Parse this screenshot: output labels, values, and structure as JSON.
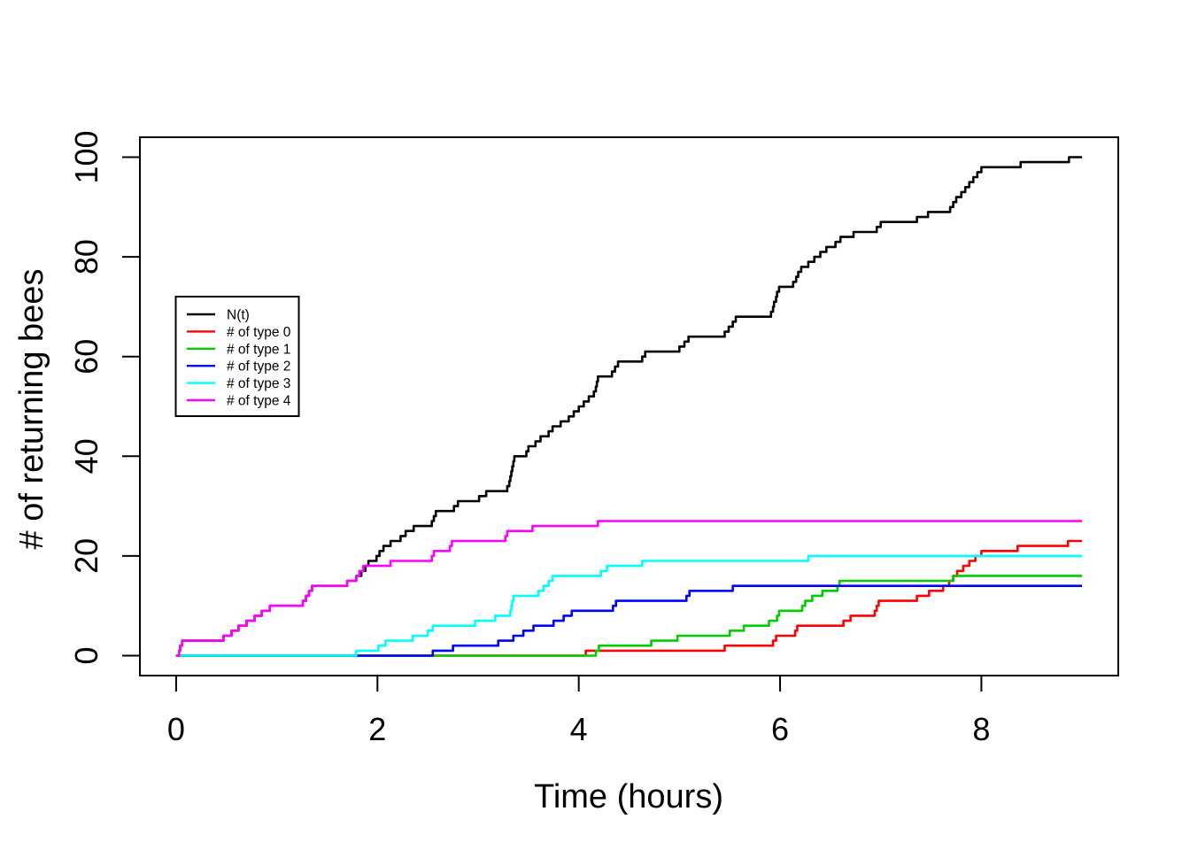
{
  "chart_data": {
    "type": "line",
    "line_style": "step-after",
    "title": "",
    "xlabel": "Time (hours)",
    "ylabel": "# of returning bees",
    "xlim": [
      0,
      9
    ],
    "ylim": [
      0,
      100
    ],
    "x_ticks": [
      0,
      2,
      4,
      6,
      8
    ],
    "y_ticks": [
      0,
      20,
      40,
      60,
      80,
      100
    ],
    "axis_expansion": 0.04,
    "t_end": 9,
    "grid": false,
    "legend_position": "upper-left-inside",
    "series": [
      {
        "id": "nt",
        "name": "N(t)",
        "color": "#000000",
        "points": [
          [
            0,
            0
          ],
          [
            0.03,
            1
          ],
          [
            0.04,
            2
          ],
          [
            0.06,
            3
          ],
          [
            0.47,
            4
          ],
          [
            0.55,
            5
          ],
          [
            0.62,
            6
          ],
          [
            0.7,
            7
          ],
          [
            0.78,
            8
          ],
          [
            0.85,
            9
          ],
          [
            0.93,
            10
          ],
          [
            1.26,
            11
          ],
          [
            1.29,
            12
          ],
          [
            1.32,
            13
          ],
          [
            1.35,
            14
          ],
          [
            1.7,
            15
          ],
          [
            1.79,
            16
          ],
          [
            1.84,
            17
          ],
          [
            1.88,
            18
          ],
          [
            1.91,
            19
          ],
          [
            1.99,
            20
          ],
          [
            2.02,
            21
          ],
          [
            2.06,
            22
          ],
          [
            2.13,
            23
          ],
          [
            2.23,
            24
          ],
          [
            2.28,
            25
          ],
          [
            2.36,
            26
          ],
          [
            2.54,
            27
          ],
          [
            2.56,
            28
          ],
          [
            2.58,
            29
          ],
          [
            2.76,
            30
          ],
          [
            2.8,
            31
          ],
          [
            3.01,
            32
          ],
          [
            3.08,
            33
          ],
          [
            3.29,
            34
          ],
          [
            3.31,
            35
          ],
          [
            3.32,
            36
          ],
          [
            3.33,
            37
          ],
          [
            3.34,
            38
          ],
          [
            3.35,
            39
          ],
          [
            3.36,
            40
          ],
          [
            3.48,
            41
          ],
          [
            3.5,
            42
          ],
          [
            3.57,
            43
          ],
          [
            3.62,
            44
          ],
          [
            3.7,
            45
          ],
          [
            3.74,
            46
          ],
          [
            3.82,
            47
          ],
          [
            3.9,
            48
          ],
          [
            3.95,
            49
          ],
          [
            4.0,
            50
          ],
          [
            4.05,
            51
          ],
          [
            4.1,
            52
          ],
          [
            4.15,
            53
          ],
          [
            4.17,
            54
          ],
          [
            4.18,
            55
          ],
          [
            4.19,
            56
          ],
          [
            4.33,
            57
          ],
          [
            4.36,
            58
          ],
          [
            4.39,
            59
          ],
          [
            4.63,
            60
          ],
          [
            4.66,
            61
          ],
          [
            5.0,
            62
          ],
          [
            5.05,
            63
          ],
          [
            5.09,
            64
          ],
          [
            5.45,
            65
          ],
          [
            5.49,
            66
          ],
          [
            5.53,
            67
          ],
          [
            5.56,
            68
          ],
          [
            5.91,
            69
          ],
          [
            5.93,
            70
          ],
          [
            5.94,
            71
          ],
          [
            5.96,
            72
          ],
          [
            5.97,
            73
          ],
          [
            5.99,
            74
          ],
          [
            6.13,
            75
          ],
          [
            6.16,
            76
          ],
          [
            6.18,
            77
          ],
          [
            6.21,
            78
          ],
          [
            6.28,
            79
          ],
          [
            6.34,
            80
          ],
          [
            6.4,
            81
          ],
          [
            6.46,
            82
          ],
          [
            6.55,
            83
          ],
          [
            6.6,
            84
          ],
          [
            6.73,
            85
          ],
          [
            6.96,
            86
          ],
          [
            7.0,
            87
          ],
          [
            7.36,
            88
          ],
          [
            7.47,
            89
          ],
          [
            7.69,
            90
          ],
          [
            7.72,
            91
          ],
          [
            7.75,
            92
          ],
          [
            7.8,
            93
          ],
          [
            7.84,
            94
          ],
          [
            7.88,
            95
          ],
          [
            7.92,
            96
          ],
          [
            7.96,
            97
          ],
          [
            8.0,
            98
          ],
          [
            8.39,
            99
          ],
          [
            8.87,
            100
          ]
        ]
      },
      {
        "id": "type0",
        "name": "# of type 0",
        "color": "#FF0000",
        "points": [
          [
            0,
            0
          ],
          [
            4.07,
            1
          ],
          [
            5.45,
            2
          ],
          [
            5.93,
            3
          ],
          [
            5.96,
            4
          ],
          [
            6.15,
            5
          ],
          [
            6.17,
            6
          ],
          [
            6.63,
            7
          ],
          [
            6.7,
            8
          ],
          [
            6.94,
            9
          ],
          [
            6.96,
            10
          ],
          [
            6.98,
            11
          ],
          [
            7.36,
            12
          ],
          [
            7.48,
            13
          ],
          [
            7.62,
            14
          ],
          [
            7.68,
            15
          ],
          [
            7.72,
            16
          ],
          [
            7.76,
            17
          ],
          [
            7.82,
            18
          ],
          [
            7.88,
            19
          ],
          [
            7.94,
            20
          ],
          [
            8.0,
            21
          ],
          [
            8.36,
            22
          ],
          [
            8.86,
            23
          ]
        ]
      },
      {
        "id": "type1",
        "name": "# of type 1",
        "color": "#00CD00",
        "points": [
          [
            0,
            0
          ],
          [
            4.17,
            1
          ],
          [
            4.2,
            2
          ],
          [
            4.72,
            3
          ],
          [
            4.98,
            4
          ],
          [
            5.5,
            5
          ],
          [
            5.64,
            6
          ],
          [
            5.89,
            7
          ],
          [
            5.97,
            8
          ],
          [
            5.99,
            9
          ],
          [
            6.22,
            10
          ],
          [
            6.25,
            11
          ],
          [
            6.32,
            12
          ],
          [
            6.42,
            13
          ],
          [
            6.57,
            14
          ],
          [
            6.59,
            15
          ],
          [
            7.72,
            16
          ]
        ]
      },
      {
        "id": "type2",
        "name": "# of type 2",
        "color": "#0000FF",
        "points": [
          [
            0,
            0
          ],
          [
            2.55,
            1
          ],
          [
            2.75,
            2
          ],
          [
            3.2,
            3
          ],
          [
            3.35,
            4
          ],
          [
            3.45,
            5
          ],
          [
            3.55,
            6
          ],
          [
            3.75,
            7
          ],
          [
            3.85,
            8
          ],
          [
            3.93,
            9
          ],
          [
            4.34,
            10
          ],
          [
            4.37,
            11
          ],
          [
            5.07,
            12
          ],
          [
            5.1,
            13
          ],
          [
            5.53,
            14
          ]
        ]
      },
      {
        "id": "type3",
        "name": "# of type 3",
        "color": "#00FFFF",
        "points": [
          [
            0,
            0
          ],
          [
            1.79,
            1
          ],
          [
            2.01,
            2
          ],
          [
            2.08,
            3
          ],
          [
            2.35,
            4
          ],
          [
            2.5,
            5
          ],
          [
            2.55,
            6
          ],
          [
            2.97,
            7
          ],
          [
            3.17,
            8
          ],
          [
            3.32,
            9
          ],
          [
            3.33,
            10
          ],
          [
            3.34,
            11
          ],
          [
            3.35,
            12
          ],
          [
            3.6,
            13
          ],
          [
            3.65,
            14
          ],
          [
            3.7,
            15
          ],
          [
            3.74,
            16
          ],
          [
            4.22,
            17
          ],
          [
            4.28,
            18
          ],
          [
            4.63,
            19
          ],
          [
            6.28,
            20
          ]
        ]
      },
      {
        "id": "type4",
        "name": "# of type 4",
        "color": "#FF00FF",
        "points": [
          [
            0,
            0
          ],
          [
            0.03,
            1
          ],
          [
            0.04,
            2
          ],
          [
            0.06,
            3
          ],
          [
            0.47,
            4
          ],
          [
            0.55,
            5
          ],
          [
            0.62,
            6
          ],
          [
            0.7,
            7
          ],
          [
            0.78,
            8
          ],
          [
            0.85,
            9
          ],
          [
            0.93,
            10
          ],
          [
            1.26,
            11
          ],
          [
            1.29,
            12
          ],
          [
            1.32,
            13
          ],
          [
            1.35,
            14
          ],
          [
            1.7,
            15
          ],
          [
            1.79,
            16
          ],
          [
            1.82,
            17
          ],
          [
            1.86,
            18
          ],
          [
            2.13,
            19
          ],
          [
            2.54,
            20
          ],
          [
            2.56,
            21
          ],
          [
            2.72,
            22
          ],
          [
            2.74,
            23
          ],
          [
            3.27,
            24
          ],
          [
            3.29,
            25
          ],
          [
            3.54,
            26
          ],
          [
            4.19,
            27
          ]
        ]
      }
    ]
  }
}
